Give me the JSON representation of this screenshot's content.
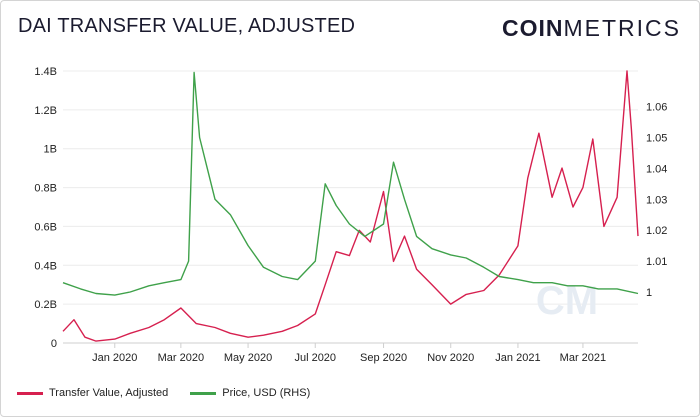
{
  "header": {
    "title": "DAI TRANSFER VALUE,  ADJUSTED",
    "logo_bold": "COIN",
    "logo_thin": "METRICS"
  },
  "chart_data": {
    "type": "line",
    "xlabel": "",
    "ylabel": "",
    "x_ticks": [
      "Jan 2020",
      "Mar 2020",
      "May 2020",
      "Jul 2020",
      "Sep 2020",
      "Nov 2020",
      "Jan 2021",
      "Mar 2021"
    ],
    "x_range": [
      "2019-11-15",
      "2021-04-20"
    ],
    "y_left": {
      "ticks": [
        "0",
        "0.2B",
        "0.4B",
        "0.6B",
        "0.8B",
        "1B",
        "1.2B",
        "1.4B"
      ],
      "min": 0,
      "max": 1.4
    },
    "y_right": {
      "ticks": [
        "1",
        "1.01",
        "1.02",
        "1.03",
        "1.04",
        "1.05",
        "1.06"
      ],
      "min": 0.9835,
      "max": 1.0715
    },
    "watermark": "CM",
    "legend_position": "bottom-left",
    "series": [
      {
        "name": "Transfer Value,  Adjusted",
        "axis": "left",
        "unit": "B USD",
        "color": "#d6204f",
        "points": [
          [
            "2019-11-15",
            0.06
          ],
          [
            "2019-11-25",
            0.12
          ],
          [
            "2019-12-05",
            0.03
          ],
          [
            "2019-12-15",
            0.01
          ],
          [
            "2020-01-01",
            0.02
          ],
          [
            "2020-01-15",
            0.05
          ],
          [
            "2020-02-01",
            0.08
          ],
          [
            "2020-02-15",
            0.12
          ],
          [
            "2020-03-01",
            0.18
          ],
          [
            "2020-03-15",
            0.1
          ],
          [
            "2020-04-01",
            0.08
          ],
          [
            "2020-04-15",
            0.05
          ],
          [
            "2020-05-01",
            0.03
          ],
          [
            "2020-05-15",
            0.04
          ],
          [
            "2020-06-01",
            0.06
          ],
          [
            "2020-06-15",
            0.09
          ],
          [
            "2020-07-01",
            0.15
          ],
          [
            "2020-07-10",
            0.3
          ],
          [
            "2020-07-20",
            0.47
          ],
          [
            "2020-08-01",
            0.45
          ],
          [
            "2020-08-10",
            0.58
          ],
          [
            "2020-08-20",
            0.52
          ],
          [
            "2020-09-01",
            0.78
          ],
          [
            "2020-09-10",
            0.42
          ],
          [
            "2020-09-20",
            0.55
          ],
          [
            "2020-10-01",
            0.38
          ],
          [
            "2020-10-15",
            0.3
          ],
          [
            "2020-11-01",
            0.2
          ],
          [
            "2020-11-15",
            0.25
          ],
          [
            "2020-12-01",
            0.27
          ],
          [
            "2020-12-15",
            0.35
          ],
          [
            "2021-01-01",
            0.5
          ],
          [
            "2021-01-10",
            0.85
          ],
          [
            "2021-01-20",
            1.08
          ],
          [
            "2021-02-01",
            0.75
          ],
          [
            "2021-02-10",
            0.9
          ],
          [
            "2021-02-20",
            0.7
          ],
          [
            "2021-03-01",
            0.8
          ],
          [
            "2021-03-10",
            1.05
          ],
          [
            "2021-03-20",
            0.6
          ],
          [
            "2021-04-01",
            0.75
          ],
          [
            "2021-04-10",
            1.4
          ],
          [
            "2021-04-14",
            1.1
          ],
          [
            "2021-04-20",
            0.55
          ]
        ]
      },
      {
        "name": "Price, USD (RHS)",
        "axis": "right",
        "unit": "USD",
        "color": "#3fa14a",
        "points": [
          [
            "2019-11-15",
            1.003
          ],
          [
            "2019-12-01",
            1.001
          ],
          [
            "2019-12-15",
            0.9995
          ],
          [
            "2020-01-01",
            0.999
          ],
          [
            "2020-01-15",
            1.0
          ],
          [
            "2020-02-01",
            1.002
          ],
          [
            "2020-02-15",
            1.003
          ],
          [
            "2020-03-01",
            1.004
          ],
          [
            "2020-03-08",
            1.01
          ],
          [
            "2020-03-13",
            1.071
          ],
          [
            "2020-03-18",
            1.05
          ],
          [
            "2020-03-25",
            1.04
          ],
          [
            "2020-04-01",
            1.03
          ],
          [
            "2020-04-15",
            1.025
          ],
          [
            "2020-05-01",
            1.015
          ],
          [
            "2020-05-15",
            1.008
          ],
          [
            "2020-06-01",
            1.005
          ],
          [
            "2020-06-15",
            1.004
          ],
          [
            "2020-07-01",
            1.01
          ],
          [
            "2020-07-10",
            1.035
          ],
          [
            "2020-07-20",
            1.028
          ],
          [
            "2020-08-01",
            1.022
          ],
          [
            "2020-08-15",
            1.018
          ],
          [
            "2020-09-01",
            1.022
          ],
          [
            "2020-09-10",
            1.042
          ],
          [
            "2020-09-20",
            1.03
          ],
          [
            "2020-10-01",
            1.018
          ],
          [
            "2020-10-15",
            1.014
          ],
          [
            "2020-11-01",
            1.012
          ],
          [
            "2020-11-15",
            1.011
          ],
          [
            "2020-12-01",
            1.008
          ],
          [
            "2020-12-15",
            1.005
          ],
          [
            "2021-01-01",
            1.004
          ],
          [
            "2021-01-15",
            1.003
          ],
          [
            "2021-02-01",
            1.003
          ],
          [
            "2021-02-15",
            1.002
          ],
          [
            "2021-03-01",
            1.002
          ],
          [
            "2021-03-15",
            1.001
          ],
          [
            "2021-04-01",
            1.001
          ],
          [
            "2021-04-20",
            0.9995
          ]
        ]
      }
    ]
  }
}
